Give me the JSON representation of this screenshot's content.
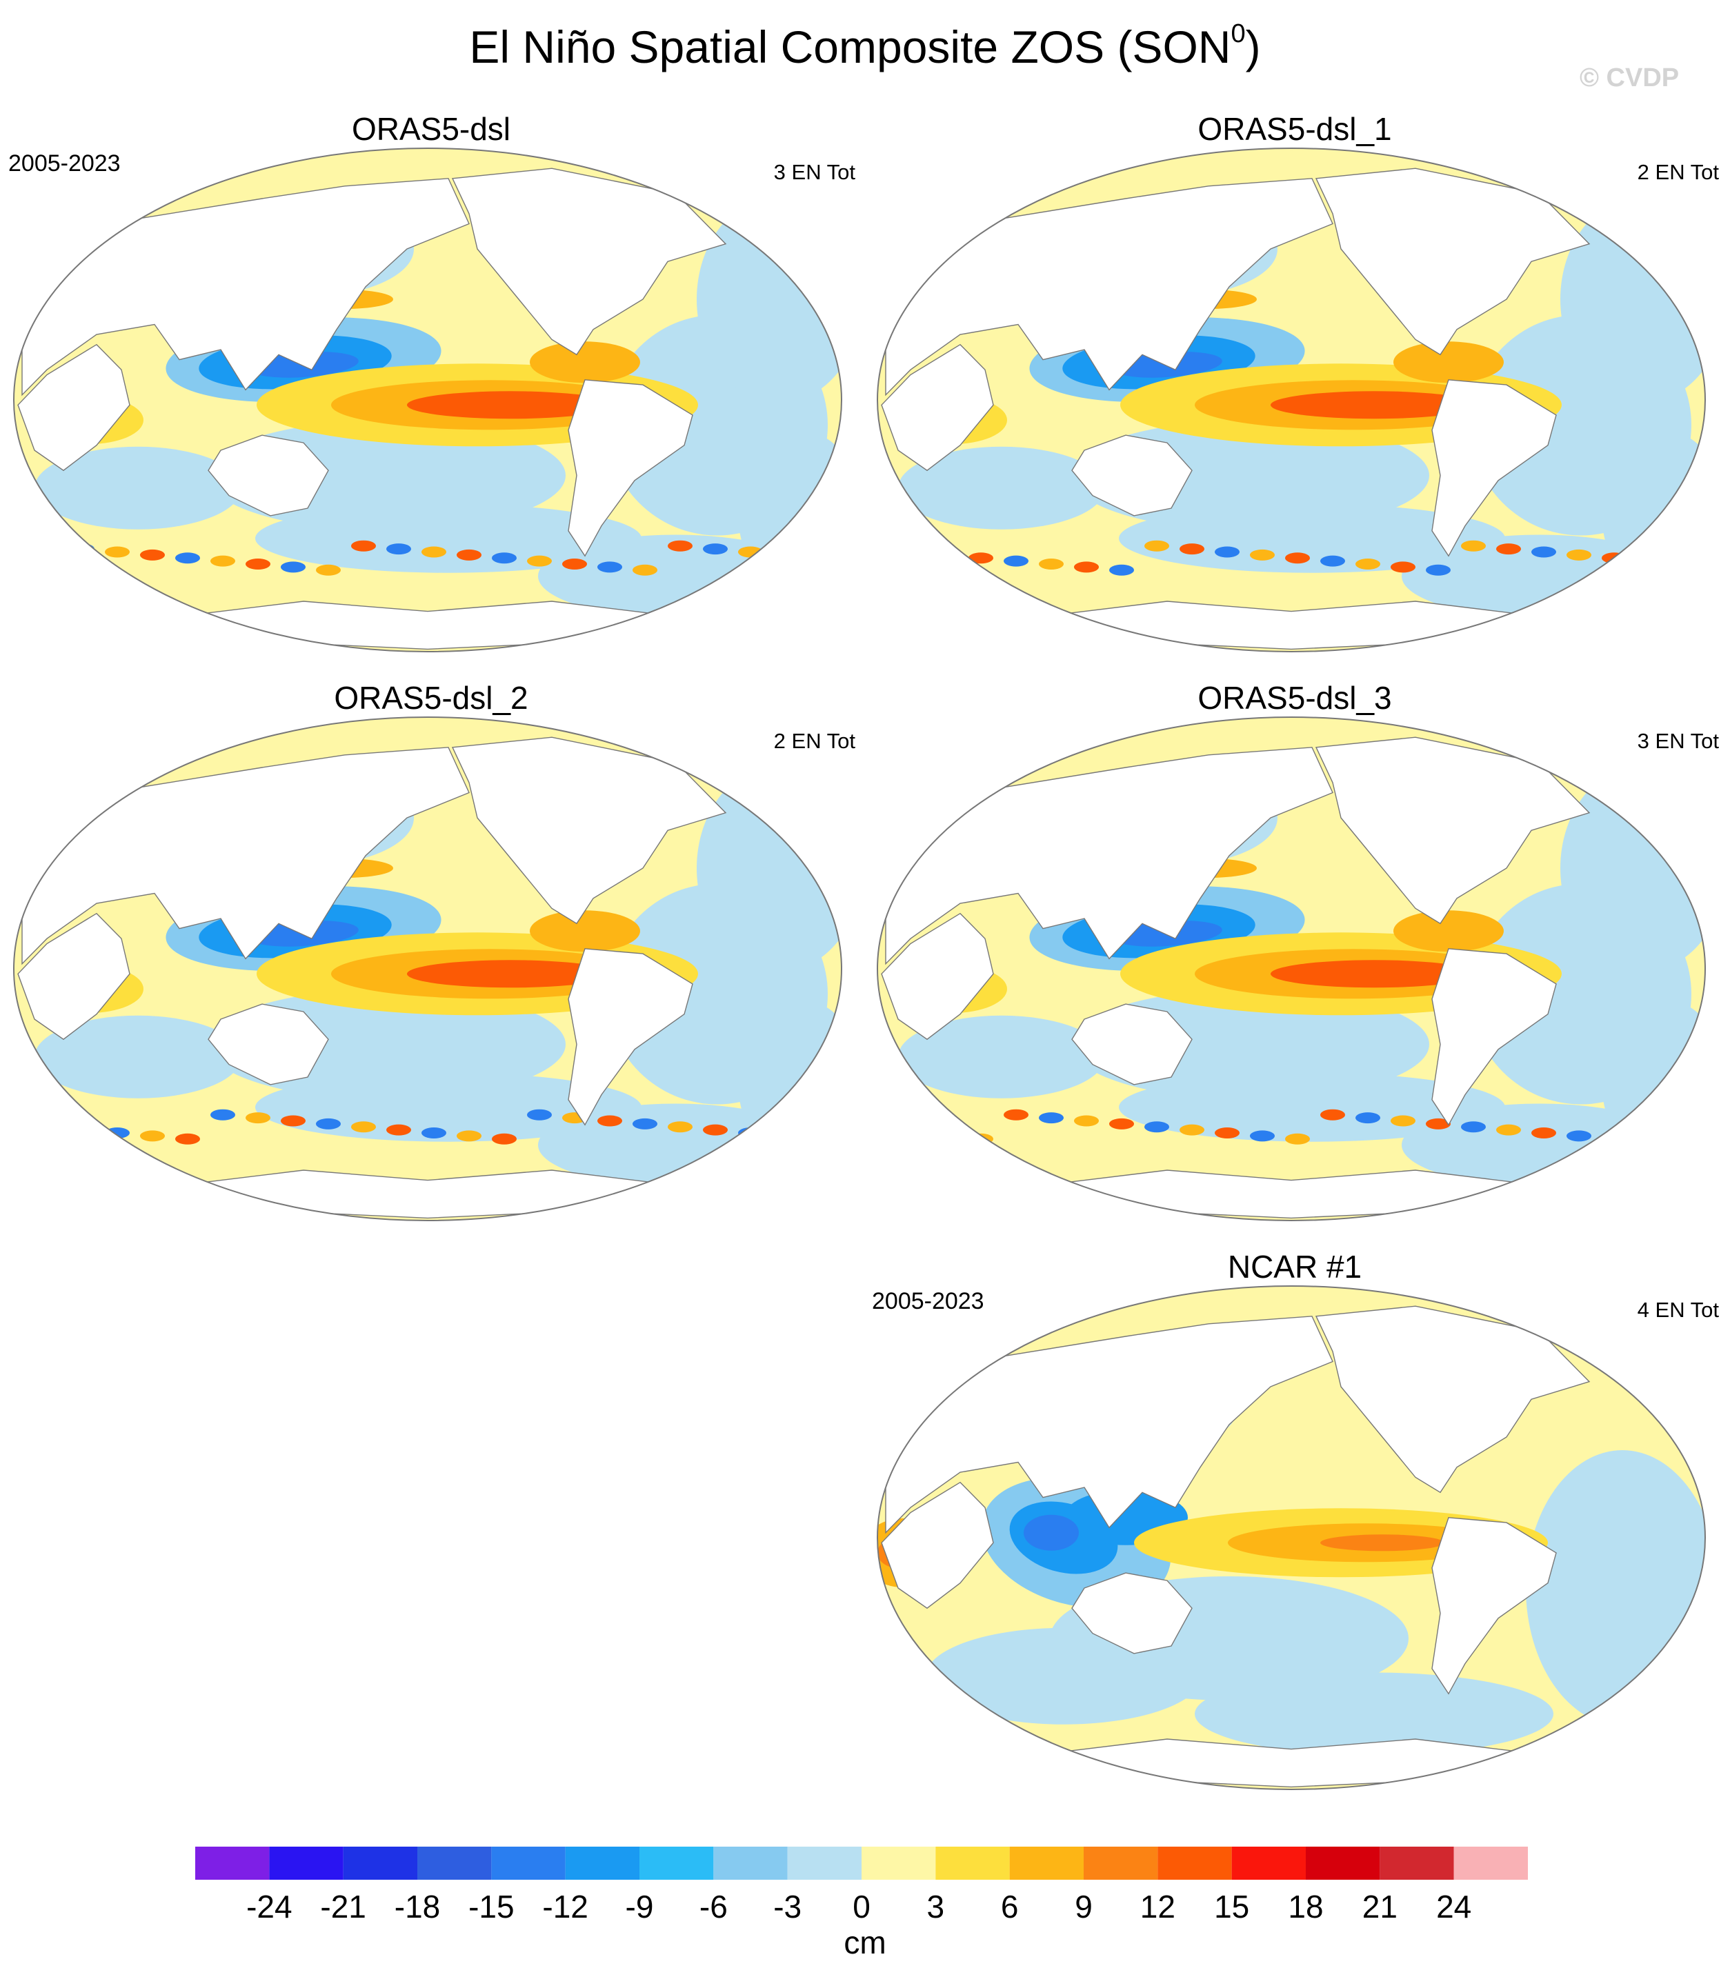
{
  "figure": {
    "title": "El Niño Spatial Composite ZOS (SON",
    "title_superscript": "0",
    "title_suffix": ")",
    "watermark": "© CVDP"
  },
  "panels": [
    {
      "title": "ORAS5-dsl",
      "years": "2005-2023",
      "count": "3 EN Tot",
      "pattern": "ocean-reanalysis"
    },
    {
      "title": "ORAS5-dsl_1",
      "years": "",
      "count": "2 EN Tot",
      "pattern": "ocean-reanalysis"
    },
    {
      "title": "ORAS5-dsl_2",
      "years": "",
      "count": "2 EN Tot",
      "pattern": "ocean-reanalysis"
    },
    {
      "title": "ORAS5-dsl_3",
      "years": "",
      "count": "3 EN Tot",
      "pattern": "ocean-reanalysis"
    },
    {
      "title": "NCAR #1",
      "years": "2005-2023",
      "count": "4 EN Tot",
      "pattern": "model-smooth"
    }
  ],
  "colorbar": {
    "unit": "cm",
    "tick_labels": [
      "-24",
      "-21",
      "-18",
      "-15",
      "-12",
      "-9",
      "-6",
      "-3",
      "0",
      "3",
      "6",
      "9",
      "12",
      "15",
      "18",
      "21",
      "24"
    ],
    "colors": [
      "#7e1fe6",
      "#2a14f2",
      "#1e32e6",
      "#2e5ee0",
      "#2a7ef0",
      "#1a9af2",
      "#2bbcf6",
      "#86caf0",
      "#b8e0f2",
      "#fef7a6",
      "#fddf3d",
      "#fdb515",
      "#fb8314",
      "#fc5a05",
      "#fa160c",
      "#d6000c",
      "#d2282f",
      "#f9b1b5"
    ]
  },
  "map_colors": {
    "land": "#ffffff",
    "outline": "#777777",
    "ocean_neutral_pos": "#fef7a6",
    "ocean_neutral_neg": "#b8e0f2"
  }
}
